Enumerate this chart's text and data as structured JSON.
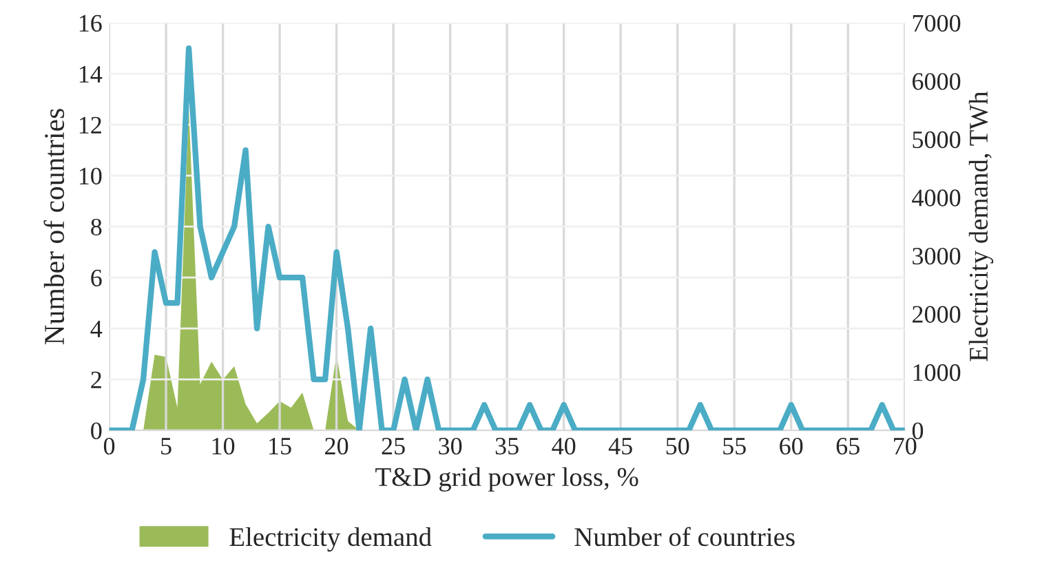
{
  "chart_data": {
    "type": "line",
    "xlabel": "T&D grid power loss, %",
    "ylabel": "Number of countries",
    "y2label": "Electricity demand, TWh",
    "x": [
      0,
      1,
      2,
      3,
      4,
      5,
      6,
      7,
      8,
      9,
      10,
      11,
      12,
      13,
      14,
      15,
      16,
      17,
      18,
      19,
      20,
      21,
      22,
      23,
      24,
      25,
      26,
      27,
      28,
      29,
      30,
      31,
      32,
      33,
      34,
      35,
      36,
      37,
      38,
      39,
      40,
      41,
      42,
      43,
      44,
      45,
      46,
      47,
      48,
      49,
      50,
      51,
      52,
      53,
      54,
      55,
      56,
      57,
      58,
      59,
      60,
      61,
      62,
      63,
      64,
      65,
      66,
      67,
      68,
      69,
      70
    ],
    "series": [
      {
        "name": "Electricity demand",
        "type": "area",
        "axis": "y2",
        "color": "#9bbb59",
        "values": [
          0,
          0,
          0,
          0,
          1300,
          1260,
          390,
          5550,
          790,
          1180,
          870,
          1100,
          450,
          120,
          300,
          500,
          390,
          650,
          0,
          0,
          1300,
          160,
          0,
          0,
          0,
          0,
          0,
          0,
          0,
          0,
          0,
          0,
          0,
          0,
          0,
          0,
          0,
          20,
          0,
          0,
          0,
          0,
          0,
          0,
          0,
          0,
          0,
          0,
          0,
          0,
          0,
          0,
          0,
          0,
          0,
          0,
          0,
          0,
          0,
          0,
          0,
          0,
          0,
          0,
          0,
          0,
          0,
          0,
          0,
          0,
          0
        ]
      },
      {
        "name": "Number of countries",
        "color": "#4bacc6",
        "values": [
          0,
          0,
          0,
          2,
          7,
          5,
          5,
          15,
          8,
          6,
          7,
          8,
          11,
          4,
          8,
          6,
          6,
          6,
          2,
          2,
          7,
          4,
          0,
          4,
          0,
          0,
          2,
          0,
          2,
          0,
          0,
          0,
          0,
          1,
          0,
          0,
          0,
          1,
          0,
          0,
          1,
          0,
          0,
          0,
          0,
          0,
          0,
          0,
          0,
          0,
          0,
          0,
          1,
          0,
          0,
          0,
          0,
          0,
          0,
          0,
          1,
          0,
          0,
          0,
          0,
          0,
          0,
          0,
          1,
          0,
          0
        ]
      }
    ],
    "xlim": [
      0,
      70
    ],
    "xticks": [
      0,
      5,
      10,
      15,
      20,
      25,
      30,
      35,
      40,
      45,
      50,
      55,
      60,
      65,
      70
    ],
    "ylim": [
      0,
      16
    ],
    "yticks": [
      0,
      2,
      4,
      6,
      8,
      10,
      12,
      14,
      16
    ],
    "y2lim": [
      0,
      7000
    ],
    "y2ticks": [
      0,
      1000,
      2000,
      3000,
      4000,
      5000,
      6000,
      7000
    ],
    "grid": true,
    "legend": "bottom"
  }
}
